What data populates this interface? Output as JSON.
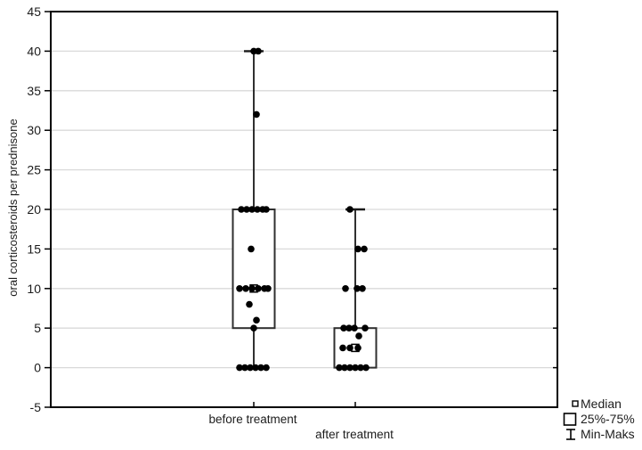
{
  "figure": {
    "background": "#ffffff"
  },
  "chart_data": {
    "type": "box",
    "title": "",
    "xlabel": "",
    "ylabel": "oral corticosteroids per prednisone",
    "ylim": [
      -5,
      45
    ],
    "yticks": [
      -5,
      0,
      5,
      10,
      15,
      20,
      25,
      30,
      35,
      40,
      45
    ],
    "grid": "horizontal gridlines at every 5 units, light gray",
    "legend_position": "outside bottom-right",
    "categories": [
      "before treatment",
      "after treatment"
    ],
    "legend": [
      {
        "symbol": "median-square",
        "label": "Median"
      },
      {
        "symbol": "box-outline",
        "label": "25%-75%"
      },
      {
        "symbol": "whisker-ibeam",
        "label": "Min-Maks"
      }
    ],
    "series": [
      {
        "name": "before treatment",
        "min": 0,
        "q1": 5,
        "median": 10,
        "q3": 20,
        "max": 40,
        "points": [
          [
            40,
            0
          ],
          [
            40,
            5
          ],
          [
            32,
            3
          ],
          [
            20,
            -14
          ],
          [
            20,
            -8
          ],
          [
            20,
            -2
          ],
          [
            20,
            4
          ],
          [
            20,
            10
          ],
          [
            20,
            14
          ],
          [
            15,
            -3
          ],
          [
            10,
            -16
          ],
          [
            10,
            -9
          ],
          [
            10,
            -2
          ],
          [
            10,
            5
          ],
          [
            10,
            12
          ],
          [
            10,
            16
          ],
          [
            8,
            -5
          ],
          [
            6,
            3
          ],
          [
            5,
            0
          ],
          [
            0,
            -16
          ],
          [
            0,
            -10
          ],
          [
            0,
            -4
          ],
          [
            0,
            2
          ],
          [
            0,
            8
          ],
          [
            0,
            14
          ]
        ]
      },
      {
        "name": "after treatment",
        "min": 0,
        "q1": 0,
        "median": 2.5,
        "q3": 5,
        "max": 20,
        "points": [
          [
            20,
            -6
          ],
          [
            15,
            3
          ],
          [
            15,
            10
          ],
          [
            10,
            -11
          ],
          [
            10,
            2
          ],
          [
            10,
            8
          ],
          [
            5,
            -13
          ],
          [
            5,
            -7
          ],
          [
            5,
            -1
          ],
          [
            5,
            11
          ],
          [
            4,
            4
          ],
          [
            2.5,
            -14
          ],
          [
            2.5,
            -6
          ],
          [
            2.5,
            3
          ],
          [
            0,
            -18
          ],
          [
            0,
            -12
          ],
          [
            0,
            -6
          ],
          [
            0,
            0
          ],
          [
            0,
            6
          ],
          [
            0,
            12
          ]
        ]
      }
    ]
  },
  "colors": {
    "frame": "#000000",
    "grid": "#d9d9d9",
    "box": "#2f2f2f",
    "whisker": "#1a1a1a",
    "point": "#000000",
    "text": "#1c1c1c",
    "background": "#ffffff"
  }
}
